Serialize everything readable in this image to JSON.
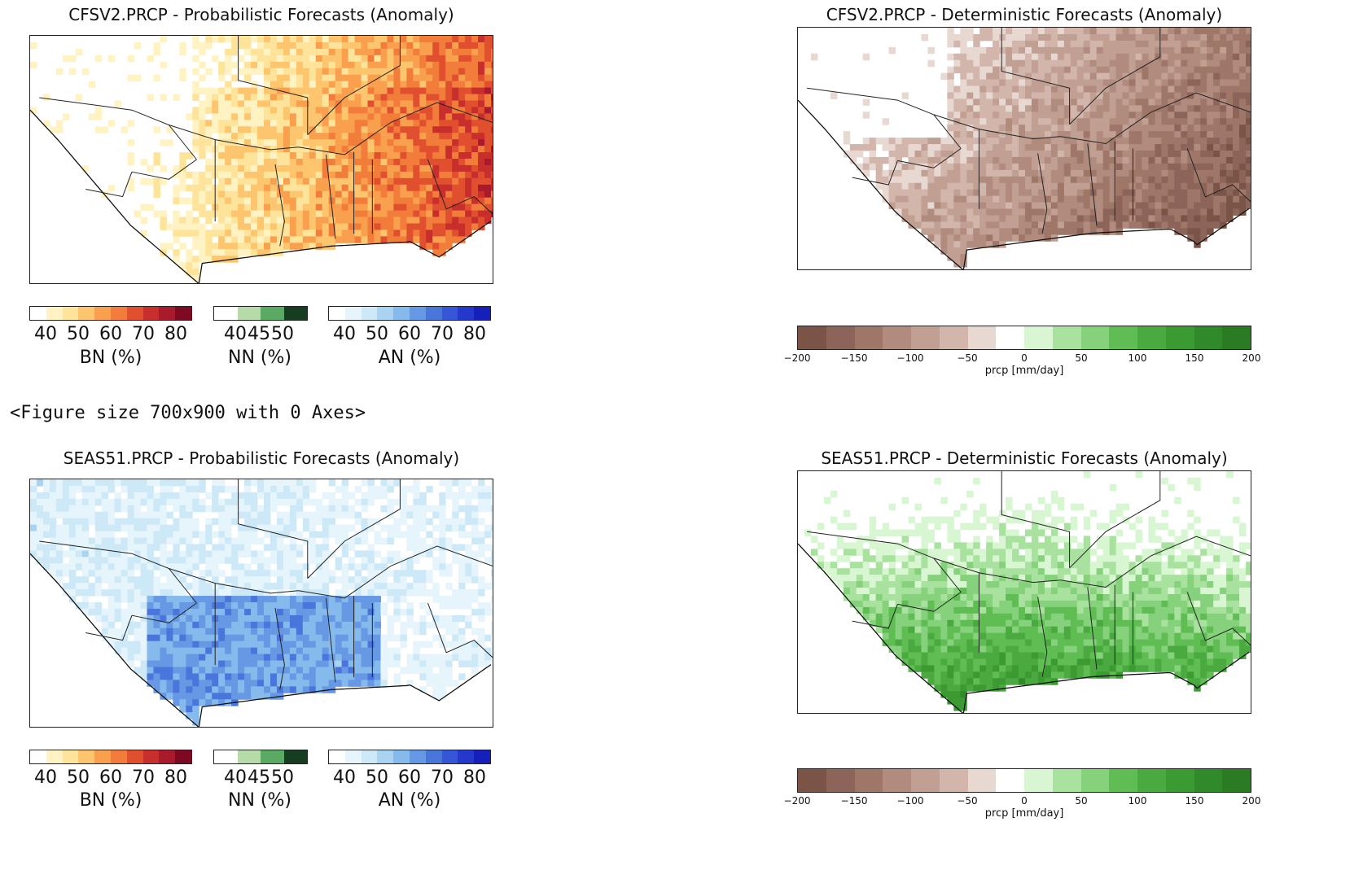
{
  "panels": {
    "cfsv2_prob": {
      "title": "CFSV2.PRCP - Probabilistic Forecasts (Anomaly)",
      "theme": "warm"
    },
    "cfsv2_det": {
      "title": "CFSV2.PRCP - Deterministic Forecasts (Anomaly)",
      "theme": "brown"
    },
    "seas51_prob": {
      "title": "SEAS51.PRCP - Probabilistic Forecasts (Anomaly)",
      "theme": "cool"
    },
    "seas51_det": {
      "title": "SEAS51.PRCP - Deterministic Forecasts (Anomaly)",
      "theme": "green"
    }
  },
  "figure_output": "<Figure size 700x900 with 0 Axes>",
  "colorbars": {
    "bn": {
      "label": "BN (%)",
      "ticks": [
        "40",
        "50",
        "60",
        "70",
        "80"
      ],
      "colors": [
        "#ffffff",
        "#fff3c4",
        "#fde49a",
        "#fcc56e",
        "#f9a04f",
        "#f27d3b",
        "#e0502f",
        "#c72e2c",
        "#a81a2c",
        "#7d0a22"
      ]
    },
    "nn": {
      "label": "NN (%)",
      "ticks": [
        "40",
        "45",
        "50"
      ],
      "colors": [
        "#ffffff",
        "#b7dba8",
        "#5aaa63",
        "#163d20"
      ]
    },
    "an": {
      "label": "AN (%)",
      "ticks": [
        "40",
        "50",
        "60",
        "70",
        "80"
      ],
      "colors": [
        "#ffffff",
        "#e5f5fb",
        "#cde9f7",
        "#a9d3f1",
        "#86b9ec",
        "#6698e4",
        "#4a76dc",
        "#3556d6",
        "#2538cc",
        "#1520bb"
      ]
    },
    "det": {
      "label": "prcp [mm/day]",
      "ticks": [
        "−200",
        "−150",
        "−100",
        "−50",
        "0",
        "50",
        "100",
        "150",
        "200"
      ],
      "colors": [
        "#7b5448",
        "#8d6459",
        "#9f7769",
        "#b08b7e",
        "#c19f92",
        "#d3b6ab",
        "#e8d8d2",
        "#ffffff",
        "#d8f6d2",
        "#a8e29e",
        "#86d17c",
        "#5fbd54",
        "#4aaa3f",
        "#3c9a33",
        "#308a2a",
        "#2b7a24"
      ]
    }
  }
}
